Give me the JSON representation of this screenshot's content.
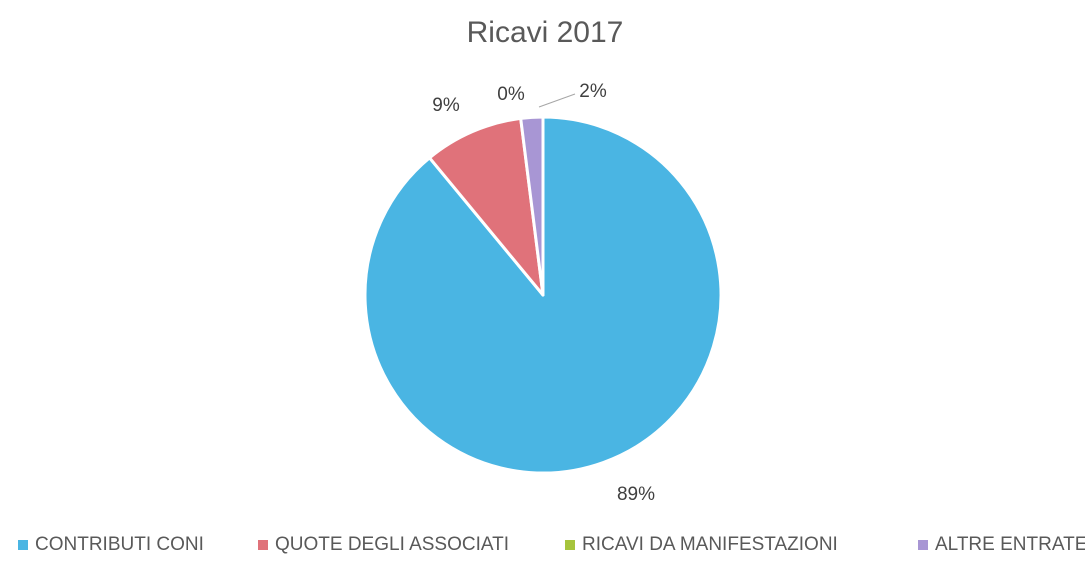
{
  "chart_data": {
    "type": "pie",
    "title": "Ricavi 2017",
    "categories": [
      "CONTRIBUTI CONI",
      "QUOTE DEGLI ASSOCIATI",
      "RICAVI DA MANIFESTAZIONI",
      "ALTRE ENTRATE"
    ],
    "values": [
      89,
      9,
      0,
      2
    ],
    "value_unit": "%",
    "data_labels": [
      "89%",
      "9%",
      "0%",
      "2%"
    ],
    "colors": [
      "#4ab5e3",
      "#e0727a",
      "#a6c43c",
      "#a896d4"
    ],
    "legend_position": "bottom",
    "slice_border_color": "#ffffff"
  }
}
